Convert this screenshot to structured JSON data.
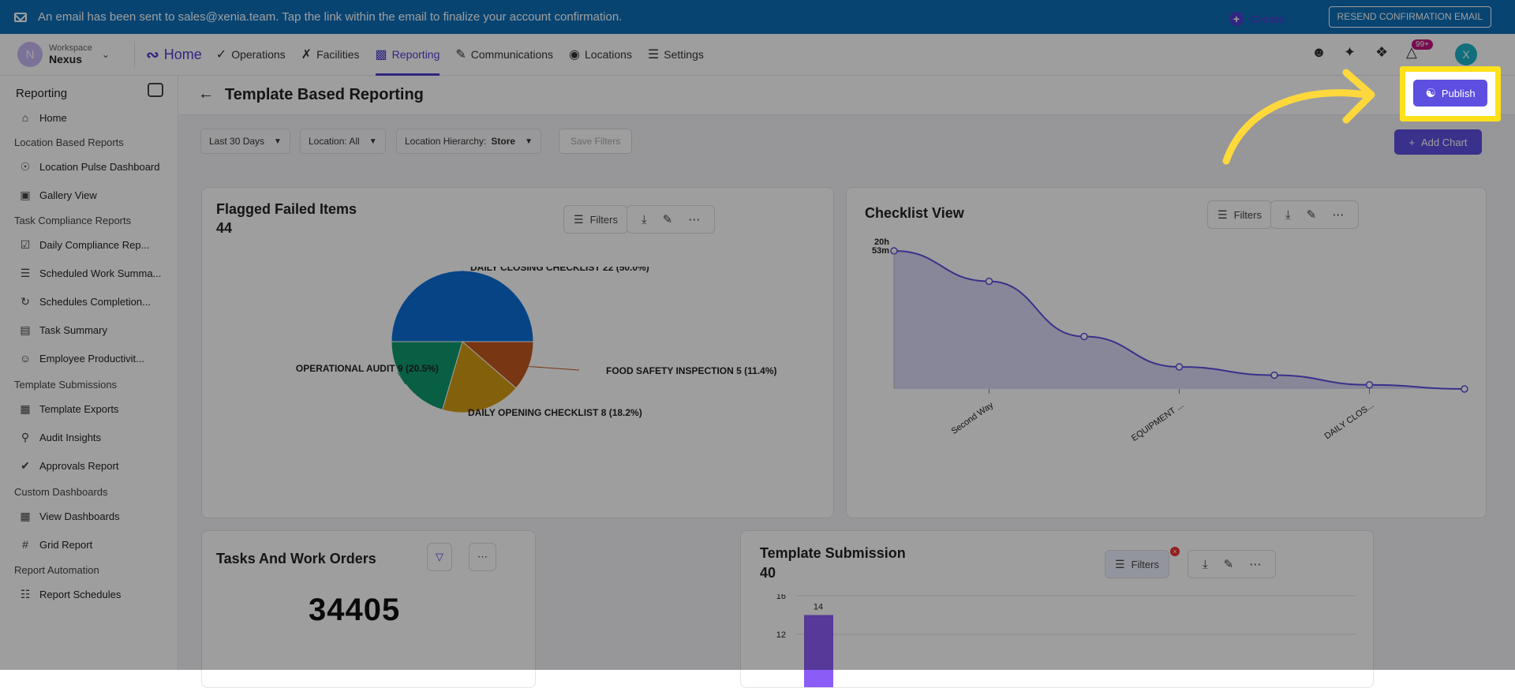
{
  "banner": {
    "text": "An email has been sent to sales@xenia.team. Tap the link within the email to finalize your account confirmation.",
    "resend_label": "RESEND CONFIRMATION EMAIL"
  },
  "workspace": {
    "avatar_letter": "N",
    "label": "Workspace",
    "name": "Nexus"
  },
  "nav": {
    "home": "Home",
    "items": [
      {
        "label": "Operations",
        "icon": "check-circle-icon"
      },
      {
        "label": "Facilities",
        "icon": "wrench-icon"
      },
      {
        "label": "Reporting",
        "icon": "chart-icon",
        "active": true
      },
      {
        "label": "Communications",
        "icon": "chat-icon"
      },
      {
        "label": "Locations",
        "icon": "pin-icon"
      },
      {
        "label": "Settings",
        "icon": "sliders-icon"
      }
    ],
    "create": "Create",
    "notif_badge": "99+",
    "user_avatar": "X"
  },
  "sidebar": {
    "title": "Reporting",
    "home": "Home",
    "sections": [
      {
        "title": "Location Based Reports",
        "items": [
          "Location Pulse Dashboard",
          "Gallery View"
        ]
      },
      {
        "title": "Task Compliance Reports",
        "items": [
          "Daily Compliance Rep...",
          "Scheduled Work Summa...",
          "Schedules Completion...",
          "Task Summary",
          "Employee Productivit..."
        ]
      },
      {
        "title": "Template Submissions",
        "items": [
          "Template Exports",
          "Audit Insights",
          "Approvals Report"
        ]
      },
      {
        "title": "Custom Dashboards",
        "items": [
          "View Dashboards",
          "Grid Report"
        ]
      },
      {
        "title": "Report Automation",
        "items": [
          "Report Schedules"
        ]
      }
    ]
  },
  "page": {
    "title": "Template Based Reporting",
    "publish": "Publish",
    "add_chart": "Add Chart"
  },
  "filters": {
    "date": "Last 30 Days",
    "location": "Location: All",
    "hierarchy_label": "Location Hierarchy:",
    "hierarchy_value": "Store",
    "save": "Save Filters"
  },
  "cards": {
    "flagged": {
      "title": "Flagged Failed Items",
      "value": "44",
      "filters": "Filters"
    },
    "checklist": {
      "title": "Checklist View",
      "filters": "Filters"
    },
    "tasks": {
      "title": "Tasks And Work Orders",
      "value": "34405"
    },
    "template_submission": {
      "title": "Template Submission",
      "value": "40",
      "filters": "Filters"
    }
  },
  "chart_data": [
    {
      "type": "pie",
      "title": "Flagged Failed Items",
      "labels": [
        "DAILY CLOSING CHECKLIST 22 (50.0%)",
        "FOOD SAFETY INSPECTION 5 (11.4%)",
        "DAILY OPENING CHECKLIST 8 (18.2%)",
        "OPERATIONAL AUDIT 9 (20.5%)"
      ],
      "values": [
        22,
        5,
        8,
        9
      ],
      "colors": [
        "#0a6fd8",
        "#c2571f",
        "#d49b12",
        "#0d9a6e"
      ]
    },
    {
      "type": "area",
      "title": "Checklist View",
      "x": [
        "",
        "Second Way",
        "",
        "EQUIPMENT ...",
        "",
        "DAILY CLOS...",
        ""
      ],
      "values": [
        100,
        78,
        38,
        16,
        10,
        3,
        0
      ],
      "ytick": "20h 53m",
      "color": "#5d4fe0"
    },
    {
      "type": "bar",
      "title": "Template Submission",
      "yticks": [
        16,
        12
      ],
      "values": [
        14
      ],
      "color": "#8b5cf6"
    }
  ]
}
